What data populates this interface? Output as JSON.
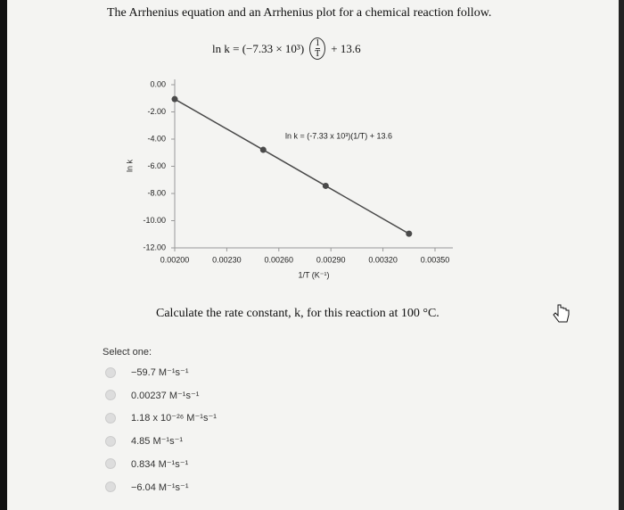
{
  "question": {
    "title": "The Arrhenius equation and an Arrhenius plot for a chemical reaction follow.",
    "equation_left": "ln k = (−7.33 × 10³)",
    "equation_numerator": "1",
    "equation_denominator": "T",
    "equation_right": "+ 13.6",
    "prompt": "Calculate the rate constant, k, for this reaction at 100 °C."
  },
  "chart_data": {
    "type": "line",
    "x_label": "1/T (K⁻¹)",
    "y_label": "ln k",
    "annotation": "ln k = (-7.33 x 10³)(1/T) + 13.6",
    "x": [
      0.002,
      0.00251,
      0.00287,
      0.00335
    ],
    "series": [
      {
        "color": "#4a4a4a",
        "values": [
          -1.06,
          -4.79,
          -7.44,
          -10.96
        ]
      }
    ],
    "xlim": [
      0.002,
      0.0035
    ],
    "xticks": [
      {
        "value": 0.002,
        "label": "0.00200"
      },
      {
        "value": 0.0023,
        "label": "0.00230"
      },
      {
        "value": 0.0026,
        "label": "0.00260"
      },
      {
        "value": 0.0029,
        "label": "0.00290"
      },
      {
        "value": 0.0032,
        "label": "0.00320"
      },
      {
        "value": 0.0035,
        "label": "0.00350"
      }
    ],
    "ylim": [
      -12,
      0
    ],
    "yticks": [
      {
        "value": 0,
        "label": "0.00"
      },
      {
        "value": -2,
        "label": "-2.00"
      },
      {
        "value": -4,
        "label": "-4.00"
      },
      {
        "value": -6,
        "label": "-6.00"
      },
      {
        "value": -8,
        "label": "-8.00"
      },
      {
        "value": -10,
        "label": "-10.00"
      },
      {
        "value": -12,
        "label": "-12.00"
      }
    ]
  },
  "answers": {
    "label": "Select one:",
    "options": [
      "−59.7 M⁻¹s⁻¹",
      "0.00237 M⁻¹s⁻¹",
      "1.18 x 10⁻²⁶ M⁻¹s⁻¹",
      "4.85 M⁻¹s⁻¹",
      "0.834 M⁻¹s⁻¹",
      "−6.04 M⁻¹s⁻¹"
    ]
  }
}
